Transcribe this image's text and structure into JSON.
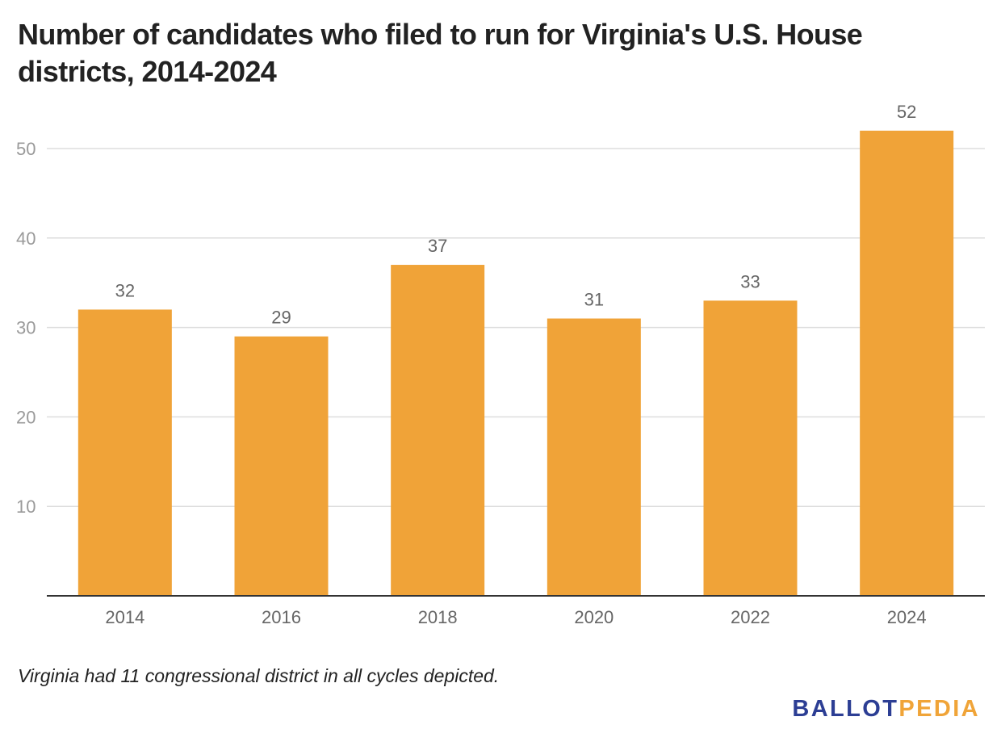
{
  "title": "Number of candidates who filed to run for Virginia's U.S. House districts, 2014-2024",
  "note": "Virginia had 11 congressional district in all cycles depicted.",
  "logo": {
    "part_a": "BALLOT",
    "part_b": "PEDIA",
    "colors": {
      "part_a": "#2c3e94",
      "part_b": "#f0a438"
    }
  },
  "chart_data": {
    "type": "bar",
    "title": "Number of candidates who filed to run for Virginia's U.S. House districts, 2014-2024",
    "categories": [
      "2014",
      "2016",
      "2018",
      "2020",
      "2022",
      "2024"
    ],
    "values": [
      32,
      29,
      37,
      31,
      33,
      52
    ],
    "xlabel": "",
    "ylabel": "",
    "ylim": [
      0,
      55
    ],
    "yticks": [
      10,
      20,
      30,
      40,
      50
    ],
    "grid": true,
    "data_labels": true,
    "bar_color": "#f0a338",
    "axis_color": "#333333",
    "grid_color": "#dddddd",
    "tick_label_color": "#9a9a9a",
    "label_color": "#666666"
  }
}
